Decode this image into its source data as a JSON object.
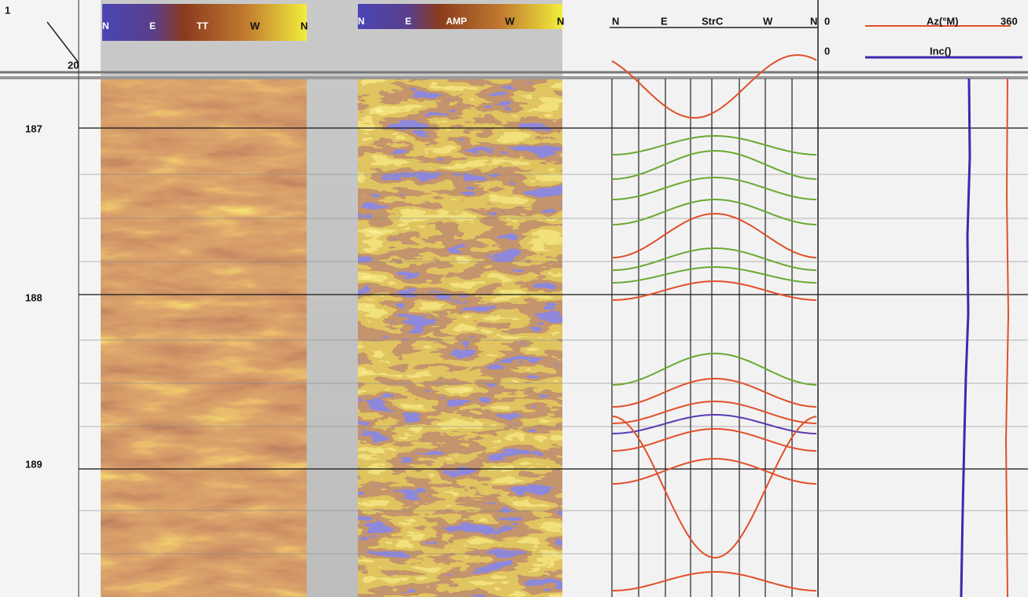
{
  "header": {
    "depth_top": "1",
    "depth_scale": "20"
  },
  "tracks": [
    {
      "labels": [
        "N",
        "E",
        "TT",
        "W",
        "N"
      ]
    },
    {
      "labels": [
        "N",
        "E",
        "AMP",
        "W",
        "N"
      ]
    },
    {
      "labels": [
        "N",
        "E",
        "StrC",
        "W",
        "N"
      ]
    }
  ],
  "orientation_track": {
    "azimuth": {
      "min": "0",
      "label": "Az(°M)",
      "max": "360"
    },
    "inclination": {
      "min": "0",
      "label": "Inc()"
    }
  },
  "depths": [
    "187",
    "188",
    "189"
  ]
}
